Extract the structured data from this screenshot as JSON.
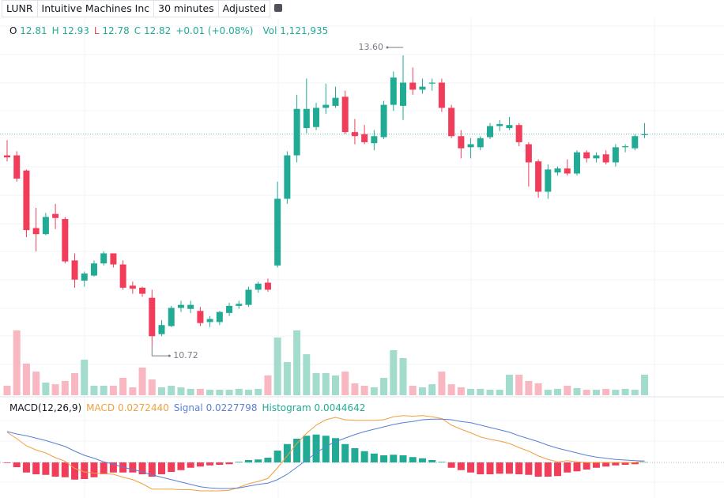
{
  "header": {
    "symbol": "LUNR",
    "name": "Intuitive Machines Inc",
    "interval": "30 minutes",
    "adjustment": "Adjusted"
  },
  "chart_data": {
    "type": "candlestick",
    "up_color": "#22ab94",
    "down_color": "#f23d5a",
    "open": [
      12.61,
      12.61,
      12.46,
      11.89,
      11.83,
      12.03,
      11.98,
      11.57,
      11.37,
      11.42,
      11.54,
      11.64,
      11.53,
      11.32,
      11.3,
      11.2,
      10.84,
      10.92,
      11.1,
      11.09,
      11.07,
      10.96,
      10.96,
      11.05,
      11.12,
      11.13,
      11.28,
      11.35,
      11.52,
      12.18,
      12.61,
      12.88,
      12.89,
      13.08,
      13.1,
      13.19,
      12.84,
      12.82,
      12.73,
      12.79,
      13.11,
      13.1,
      13.33,
      13.26,
      13.32,
      13.33,
      13.08,
      12.8,
      12.69,
      12.69,
      12.79,
      12.9,
      12.88,
      12.91,
      12.72,
      12.55,
      12.25,
      12.44,
      12.48,
      12.43,
      12.64,
      12.58,
      12.62,
      12.54,
      12.69,
      12.68,
      12.81
    ],
    "high": [
      12.76,
      12.65,
      12.47,
      12.09,
      12.04,
      12.13,
      12.0,
      11.64,
      11.46,
      11.57,
      11.66,
      11.64,
      11.57,
      11.36,
      11.31,
      11.28,
      10.98,
      11.12,
      11.17,
      11.17,
      11.11,
      11.02,
      11.07,
      11.15,
      11.17,
      11.31,
      11.36,
      11.39,
      12.35,
      12.65,
      13.21,
      13.37,
      13.13,
      13.32,
      13.29,
      13.25,
      12.97,
      12.91,
      12.86,
      13.15,
      13.44,
      13.6,
      13.48,
      13.37,
      13.37,
      13.37,
      13.11,
      12.86,
      12.78,
      12.8,
      12.93,
      12.96,
      12.99,
      12.93,
      12.74,
      12.57,
      12.52,
      12.5,
      12.57,
      12.66,
      12.66,
      12.64,
      12.66,
      12.72,
      12.72,
      12.82,
      12.93
    ],
    "low": [
      12.55,
      12.35,
      11.8,
      11.66,
      11.82,
      11.88,
      11.54,
      11.3,
      11.31,
      11.41,
      11.52,
      11.5,
      11.28,
      11.24,
      11.21,
      10.72,
      10.82,
      10.91,
      11.06,
      11.05,
      10.92,
      10.91,
      10.93,
      11.02,
      11.09,
      11.11,
      11.25,
      11.26,
      11.5,
      12.13,
      12.54,
      12.83,
      12.86,
      13.02,
      13.08,
      12.82,
      12.72,
      12.72,
      12.66,
      12.77,
      13.05,
      12.96,
      13.21,
      13.22,
      13.25,
      13.04,
      12.78,
      12.58,
      12.58,
      12.66,
      12.77,
      12.85,
      12.86,
      12.7,
      12.3,
      12.19,
      12.18,
      12.41,
      12.41,
      12.41,
      12.54,
      12.54,
      12.52,
      12.5,
      12.64,
      12.66,
      12.78
    ],
    "close": [
      12.59,
      12.38,
      11.87,
      11.83,
      12.0,
      11.99,
      11.56,
      11.38,
      11.44,
      11.54,
      11.64,
      11.53,
      11.3,
      11.29,
      11.24,
      10.82,
      10.93,
      11.1,
      11.13,
      11.13,
      10.95,
      10.99,
      11.06,
      11.12,
      11.14,
      11.28,
      11.34,
      11.28,
      12.18,
      12.61,
      13.07,
      13.07,
      13.08,
      13.11,
      13.18,
      12.84,
      12.8,
      12.74,
      12.8,
      13.11,
      13.38,
      13.33,
      13.26,
      13.29,
      13.33,
      13.08,
      12.8,
      12.68,
      12.72,
      12.78,
      12.9,
      12.92,
      12.91,
      12.74,
      12.54,
      12.25,
      12.47,
      12.48,
      12.43,
      12.64,
      12.58,
      12.61,
      12.54,
      12.69,
      12.7,
      12.8,
      12.82
    ],
    "legend": {
      "open_label": "O",
      "high_label": "H",
      "low_label": "L",
      "close_label": "C",
      "change": "+0.01 (+0.08%)",
      "volume_label": "Vol",
      "volume": "1,121,935"
    },
    "annotations": [
      {
        "value": 13.6,
        "label": "13.60"
      },
      {
        "value": 10.72,
        "label": "10.72"
      }
    ],
    "volume": {
      "up_color": "#a3dccd",
      "down_color": "#f9b7c1",
      "values": [
        520000,
        3540000,
        1730000,
        1290000,
        690000,
        600000,
        780000,
        1210000,
        1940000,
        520000,
        520000,
        520000,
        950000,
        430000,
        1510000,
        860000,
        430000,
        520000,
        430000,
        350000,
        350000,
        300000,
        300000,
        300000,
        350000,
        300000,
        350000,
        1080000,
        3150000,
        1810000,
        3540000,
        2240000,
        1210000,
        1210000,
        1080000,
        1290000,
        650000,
        520000,
        430000,
        950000,
        2460000,
        2030000,
        520000,
        430000,
        600000,
        1290000,
        600000,
        430000,
        350000,
        350000,
        300000,
        300000,
        1120000,
        1120000,
        780000,
        650000,
        300000,
        350000,
        520000,
        390000,
        300000,
        300000,
        350000,
        300000,
        350000,
        300000,
        1121935
      ]
    },
    "macd": {
      "title": "MACD(12,26,9)",
      "series": [
        {
          "name": "MACD",
          "color": "#f0a040",
          "last_label": "0.0272440",
          "values": [
            0.51,
            0.4,
            0.28,
            0.21,
            0.16,
            0.08,
            0.02,
            -0.1,
            -0.16,
            -0.18,
            -0.19,
            -0.2,
            -0.25,
            -0.29,
            -0.36,
            -0.45,
            -0.45,
            -0.45,
            -0.46,
            -0.46,
            -0.48,
            -0.48,
            -0.48,
            -0.47,
            -0.42,
            -0.36,
            -0.32,
            -0.27,
            -0.09,
            0.11,
            0.32,
            0.49,
            0.63,
            0.72,
            0.76,
            0.72,
            0.71,
            0.71,
            0.71,
            0.72,
            0.77,
            0.79,
            0.78,
            0.79,
            0.77,
            0.74,
            0.63,
            0.56,
            0.5,
            0.43,
            0.39,
            0.36,
            0.32,
            0.25,
            0.19,
            0.11,
            0.05,
            0.01,
            0.03,
            0.01,
            0.0,
            0.0,
            0.0,
            0.0,
            0.0,
            0.0,
            0.027244
          ]
        },
        {
          "name": "Signal",
          "color": "#5b7fd6",
          "last_label": "0.0227798",
          "values": [
            0.52,
            0.48,
            0.45,
            0.41,
            0.37,
            0.32,
            0.27,
            0.19,
            0.12,
            0.07,
            0.01,
            -0.03,
            -0.08,
            -0.12,
            -0.16,
            -0.21,
            -0.25,
            -0.29,
            -0.33,
            -0.37,
            -0.41,
            -0.43,
            -0.44,
            -0.44,
            -0.43,
            -0.4,
            -0.37,
            -0.35,
            -0.29,
            -0.2,
            -0.08,
            0.04,
            0.16,
            0.27,
            0.35,
            0.41,
            0.47,
            0.52,
            0.56,
            0.6,
            0.64,
            0.67,
            0.69,
            0.72,
            0.73,
            0.73,
            0.72,
            0.69,
            0.67,
            0.63,
            0.59,
            0.55,
            0.51,
            0.45,
            0.4,
            0.35,
            0.29,
            0.24,
            0.2,
            0.16,
            0.12,
            0.09,
            0.07,
            0.05,
            0.04,
            0.03,
            0.0227798
          ]
        },
        {
          "name": "Histogram",
          "color": "#22ab94",
          "down_color": "#f23d5a",
          "last_label": "0.0044642",
          "values": [
            -0.01,
            -0.08,
            -0.17,
            -0.2,
            -0.21,
            -0.24,
            -0.25,
            -0.29,
            -0.28,
            -0.25,
            -0.2,
            -0.17,
            -0.17,
            -0.17,
            -0.2,
            -0.24,
            -0.2,
            -0.16,
            -0.13,
            -0.09,
            -0.07,
            -0.05,
            -0.04,
            -0.03,
            0.01,
            0.04,
            0.05,
            0.08,
            0.2,
            0.31,
            0.4,
            0.45,
            0.47,
            0.45,
            0.41,
            0.31,
            0.24,
            0.19,
            0.15,
            0.12,
            0.13,
            0.12,
            0.09,
            0.07,
            0.04,
            0.01,
            -0.09,
            -0.13,
            -0.17,
            -0.2,
            -0.2,
            -0.19,
            -0.19,
            -0.2,
            -0.21,
            -0.24,
            -0.24,
            -0.23,
            -0.17,
            -0.15,
            -0.12,
            -0.09,
            -0.07,
            -0.05,
            -0.04,
            -0.03,
            0.0044642
          ]
        }
      ]
    }
  }
}
